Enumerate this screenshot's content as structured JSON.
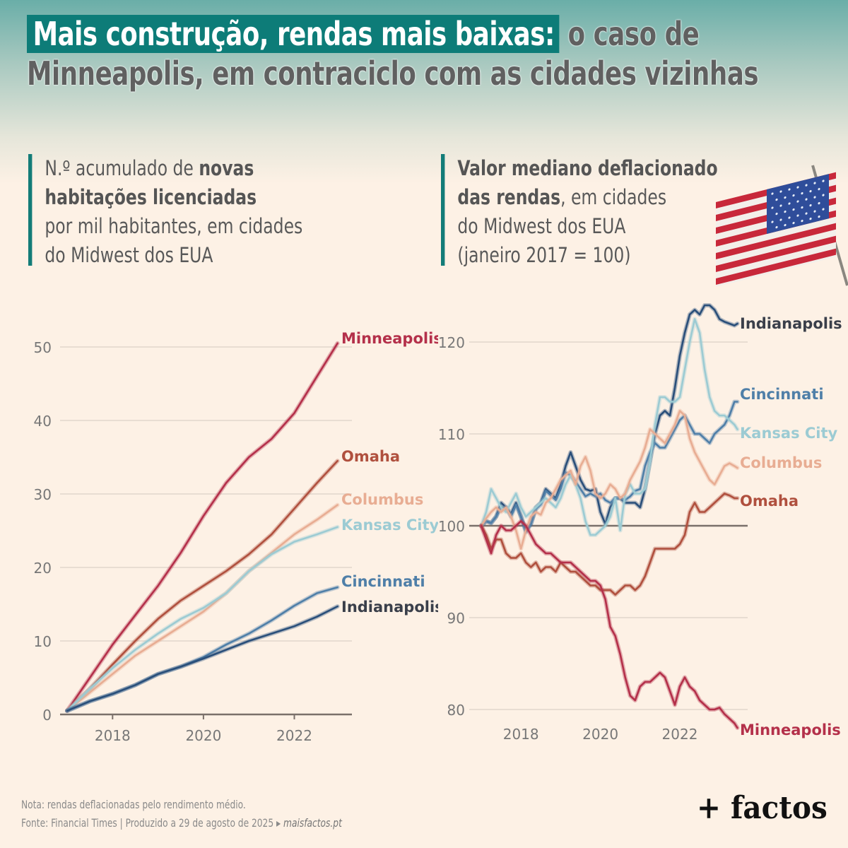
{
  "title": {
    "highlight": "Mais construção, rendas mais baixas:",
    "rest_line1": " o caso de",
    "line2": "Minneapolis, em contraciclo com as cidades vizinhas"
  },
  "left_subhead": {
    "part1": "N.º acumulado de ",
    "bold1": "novas",
    "bold2": "habitações licenciadas",
    "line3": "por mil habitantes, em cidades",
    "line4": "do Midwest dos EUA"
  },
  "right_subhead": {
    "bold1": "Valor mediano deflacionado",
    "bold2": "das rendas",
    "rest2": ", em cidades",
    "line3": "do Midwest dos EUA",
    "line4": "(janeiro 2017 = 100)"
  },
  "flag_icon": "us-flag-icon",
  "colors": {
    "accent": "#0d7c78",
    "Minneapolis": "#b4304a",
    "Omaha": "#b0503e",
    "Columbus": "#e8ad93",
    "Kansas City": "#9ccbd3",
    "Cincinnati": "#4f7fa8",
    "Indianapolis": "#2a4f7a",
    "Indianapolis_label": "#3a3f4a"
  },
  "chart_data": [
    {
      "type": "line",
      "title": "N.º acumulado de novas habitações licenciadas por mil habitantes, em cidades do Midwest dos EUA",
      "xlabel": "",
      "ylabel": "",
      "xlim": [
        2017,
        2023.2
      ],
      "ylim": [
        0,
        52
      ],
      "xticks": [
        2018,
        2020,
        2022
      ],
      "xtick_labels": [
        "2018",
        "2020",
        "2022"
      ],
      "yticks": [
        0,
        10,
        20,
        30,
        40,
        50
      ],
      "ytick_labels": [
        "0",
        "10",
        "20",
        "30",
        "40",
        "50"
      ],
      "grid": true,
      "legend": "direct-labels-right",
      "x": [
        2017.0,
        2017.5,
        2018.0,
        2018.5,
        2019.0,
        2019.5,
        2020.0,
        2020.5,
        2021.0,
        2021.5,
        2022.0,
        2022.5,
        2022.95
      ],
      "series": [
        {
          "name": "Minneapolis",
          "values": [
            0.5,
            5,
            9.5,
            13.5,
            17.5,
            22,
            27,
            31.5,
            35,
            37.5,
            41,
            46,
            50.5
          ]
        },
        {
          "name": "Omaha",
          "values": [
            0.5,
            3.5,
            6.8,
            10,
            13,
            15.5,
            17.5,
            19.5,
            21.8,
            24.5,
            28,
            31.5,
            34.5
          ]
        },
        {
          "name": "Columbus",
          "values": [
            0.5,
            3,
            5.5,
            8,
            10,
            12,
            14,
            16.5,
            19.5,
            22,
            24.5,
            26.5,
            28.5
          ]
        },
        {
          "name": "Kansas City",
          "values": [
            0.5,
            3.5,
            6.3,
            8.8,
            11,
            13,
            14.5,
            16.5,
            19.5,
            21.8,
            23.5,
            24.5,
            25.5
          ]
        },
        {
          "name": "Cincinnati",
          "values": [
            0.5,
            1.8,
            2.8,
            4,
            5.5,
            6.5,
            7.8,
            9.5,
            11,
            12.8,
            14.8,
            16.5,
            17.3
          ]
        },
        {
          "name": "Indianapolis",
          "values": [
            0.5,
            1.8,
            2.8,
            4,
            5.5,
            6.5,
            7.6,
            8.8,
            10,
            11,
            12,
            13.3,
            14.7
          ]
        }
      ],
      "labels": [
        "Minneapolis",
        "Omaha",
        "Columbus",
        "Kansas City",
        "Cincinnati",
        "Indianapolis"
      ]
    },
    {
      "type": "line",
      "title": "Valor mediano deflacionado das rendas, em cidades do Midwest dos EUA (janeiro 2017 = 100)",
      "xlabel": "",
      "ylabel": "",
      "xlim": [
        2016.4,
        2024.0
      ],
      "ylim": [
        78,
        125
      ],
      "xticks": [
        2018,
        2020,
        2022
      ],
      "xtick_labels": [
        "2018",
        "2020",
        "2022"
      ],
      "yticks": [
        80,
        90,
        100,
        110,
        120
      ],
      "ytick_labels": [
        "80",
        "90",
        "100",
        "110",
        "120"
      ],
      "baseline": 100,
      "grid": true,
      "legend": "direct-labels-right",
      "x": [
        2017.0,
        2017.125,
        2017.25,
        2017.375,
        2017.5,
        2017.625,
        2017.75,
        2017.875,
        2018.0,
        2018.125,
        2018.25,
        2018.375,
        2018.5,
        2018.625,
        2018.75,
        2018.875,
        2019.0,
        2019.125,
        2019.25,
        2019.375,
        2019.5,
        2019.625,
        2019.75,
        2019.875,
        2020.0,
        2020.125,
        2020.25,
        2020.375,
        2020.5,
        2020.625,
        2020.75,
        2020.875,
        2021.0,
        2021.125,
        2021.25,
        2021.375,
        2021.5,
        2021.625,
        2021.75,
        2021.875,
        2022.0,
        2022.125,
        2022.25,
        2022.375,
        2022.5,
        2022.625,
        2022.75,
        2022.875,
        2023.0,
        2023.125,
        2023.25,
        2023.375,
        2023.45
      ],
      "series": [
        {
          "name": "Indianapolis",
          "values": [
            100,
            100.5,
            100.3,
            101,
            102.5,
            102,
            101.3,
            102.5,
            101,
            99.5,
            100.2,
            102,
            102.5,
            104,
            103.5,
            103,
            104.5,
            106.5,
            108,
            106.5,
            105,
            104,
            103.8,
            104,
            101.5,
            100.2,
            102,
            103,
            103,
            102.5,
            102.5,
            102.5,
            102,
            104,
            107,
            110,
            112,
            112.5,
            112,
            115,
            118.5,
            121,
            123,
            123.5,
            123,
            124,
            124,
            123.5,
            122.5,
            122.2,
            122,
            121.8,
            122
          ]
        },
        {
          "name": "Cincinnati",
          "values": [
            100,
            100.5,
            100.3,
            101,
            102,
            102,
            101,
            102.3,
            101,
            99.3,
            100.2,
            101.8,
            102.3,
            103.8,
            103.3,
            102.8,
            104,
            105.8,
            105.5,
            104.8,
            104,
            103.2,
            103.5,
            103.2,
            103.5,
            102.8,
            102.5,
            103,
            103,
            102.8,
            103.2,
            103.8,
            104,
            106.5,
            108,
            109,
            108.5,
            108.5,
            109.5,
            110.5,
            111.5,
            112,
            111,
            110,
            110,
            109.5,
            109,
            110,
            110.5,
            111,
            112,
            113.5,
            113.5
          ]
        },
        {
          "name": "Kansas City",
          "values": [
            100,
            101.5,
            104,
            103,
            102,
            101.5,
            102.5,
            103.5,
            102,
            101,
            101.5,
            102,
            102.5,
            103,
            102.5,
            102,
            103,
            104.5,
            105.5,
            104.5,
            103,
            100.5,
            99,
            99,
            99.5,
            100,
            101,
            103,
            99.5,
            103.5,
            104.5,
            103.5,
            103.5,
            104,
            107,
            111,
            114,
            114,
            113.5,
            113.5,
            114,
            117,
            120,
            122.5,
            121,
            117,
            114,
            112.5,
            112,
            112,
            111.5,
            111,
            110.5
          ]
        },
        {
          "name": "Columbus",
          "values": [
            100,
            100.8,
            101.5,
            102,
            101.5,
            102,
            101,
            99.5,
            97.5,
            99.5,
            101,
            101.5,
            101.2,
            102.5,
            103,
            104,
            105,
            105.5,
            106,
            104.5,
            106.5,
            107.5,
            106,
            103.5,
            103,
            103.5,
            104.5,
            104,
            103,
            103.5,
            105,
            106,
            107,
            108.5,
            110.5,
            110,
            109.5,
            109,
            110,
            111,
            112.5,
            112,
            109.5,
            108,
            107,
            106,
            105,
            104.5,
            105.5,
            106.5,
            106.8,
            106.5,
            106.3
          ]
        },
        {
          "name": "Omaha",
          "values": [
            100,
            99,
            97.5,
            98.5,
            98.5,
            97,
            96.5,
            96.5,
            97,
            96,
            95.5,
            96,
            95,
            95.5,
            95.5,
            95,
            96,
            95.5,
            95,
            95,
            94.5,
            94,
            93.5,
            93.5,
            93,
            93,
            93,
            92.5,
            93,
            93.5,
            93.5,
            93,
            93.5,
            94.5,
            96,
            97.5,
            97.5,
            97.5,
            97.5,
            97.5,
            98,
            99,
            101.5,
            102.5,
            101.5,
            101.5,
            102,
            102.5,
            103,
            103.5,
            103.3,
            103,
            103
          ]
        },
        {
          "name": "Minneapolis",
          "values": [
            100,
            98.5,
            97,
            99,
            100,
            99.5,
            99.5,
            100,
            100.5,
            100,
            99,
            98,
            97.5,
            97,
            97,
            96.5,
            96,
            96,
            96,
            95.5,
            95,
            94.5,
            94,
            94,
            93.5,
            92,
            89,
            88,
            86,
            83.5,
            81.5,
            81,
            82.5,
            83,
            83,
            83.5,
            84,
            83.5,
            82,
            80.5,
            82.5,
            83.5,
            82.5,
            82,
            81,
            80.5,
            80,
            80,
            80.2,
            79.5,
            79,
            78.5,
            78
          ]
        }
      ],
      "labels": [
        "Indianapolis",
        "Cincinnati",
        "Kansas City",
        "Columbus",
        "Omaha",
        "Minneapolis"
      ]
    }
  ],
  "footer": {
    "note": "Nota: rendas deflacionadas pelo rendimento médio.",
    "source": "Fonte: Financial Times | Produzido a 29 de agosto de 2025 ▸ ",
    "site": "maisfactos.pt"
  },
  "logo": "+ factos"
}
